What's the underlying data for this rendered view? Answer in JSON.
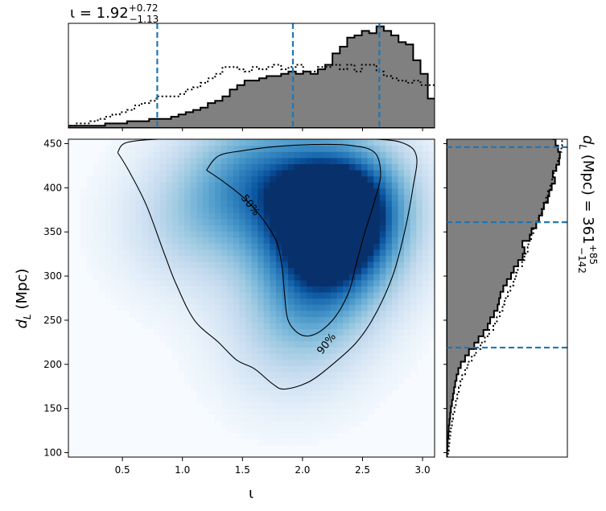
{
  "chart_data": [
    {
      "panel": "joint",
      "type": "heatmap",
      "x_label": "ι",
      "y_label_main": "d",
      "y_label_sub": "L",
      "y_label_unit": "(Mpc)",
      "xlim": [
        0.05,
        3.1
      ],
      "ylim": [
        95,
        455
      ],
      "x_ticks": [
        "0.5",
        "1.0",
        "1.5",
        "2.0",
        "2.5",
        "3.0"
      ],
      "x_tick_values": [
        0.5,
        1.0,
        1.5,
        2.0,
        2.5,
        3.0
      ],
      "y_ticks": [
        "100",
        "150",
        "200",
        "250",
        "300",
        "350",
        "400",
        "450"
      ],
      "y_tick_values": [
        100,
        150,
        200,
        250,
        300,
        350,
        400,
        450
      ],
      "colormap": "Blues",
      "contours": [
        {
          "label": "50%",
          "points": [
            [
              1.2,
              420
            ],
            [
              1.3,
              436
            ],
            [
              1.5,
              442
            ],
            [
              1.8,
              447
            ],
            [
              2.1,
              449
            ],
            [
              2.4,
              448
            ],
            [
              2.6,
              440
            ],
            [
              2.65,
              415
            ],
            [
              2.6,
              385
            ],
            [
              2.52,
              350
            ],
            [
              2.45,
              315
            ],
            [
              2.38,
              280
            ],
            [
              2.25,
              250
            ],
            [
              2.1,
              234
            ],
            [
              1.98,
              234
            ],
            [
              1.88,
              250
            ],
            [
              1.85,
              280
            ],
            [
              1.83,
              310
            ],
            [
              1.78,
              340
            ],
            [
              1.65,
              368
            ],
            [
              1.5,
              390
            ],
            [
              1.33,
              408
            ],
            [
              1.2,
              420
            ]
          ]
        },
        {
          "label": "90%",
          "points": [
            [
              0.46,
              440
            ],
            [
              0.53,
              451
            ],
            [
              0.8,
              455
            ],
            [
              1.2,
              455
            ],
            [
              2.0,
              455
            ],
            [
              2.6,
              455
            ],
            [
              2.85,
              450
            ],
            [
              2.95,
              435
            ],
            [
              2.92,
              400
            ],
            [
              2.85,
              350
            ],
            [
              2.75,
              300
            ],
            [
              2.6,
              255
            ],
            [
              2.45,
              225
            ],
            [
              2.25,
              200
            ],
            [
              2.05,
              180
            ],
            [
              1.85,
              172
            ],
            [
              1.75,
              178
            ],
            [
              1.6,
              195
            ],
            [
              1.45,
              205
            ],
            [
              1.3,
              225
            ],
            [
              1.1,
              250
            ],
            [
              0.95,
              290
            ],
            [
              0.85,
              325
            ],
            [
              0.7,
              380
            ],
            [
              0.55,
              420
            ],
            [
              0.46,
              440
            ]
          ]
        }
      ],
      "density_peaks": [
        {
          "x": 2.33,
          "y": 385,
          "weight": 1.0
        },
        {
          "x": 2.25,
          "y": 330,
          "weight": 0.55
        },
        {
          "x": 1.6,
          "y": 425,
          "weight": 0.45
        },
        {
          "x": 2.05,
          "y": 270,
          "weight": 0.35
        },
        {
          "x": 1.0,
          "y": 355,
          "weight": 0.22
        },
        {
          "x": 1.85,
          "y": 215,
          "weight": 0.18
        },
        {
          "x": 1.3,
          "y": 380,
          "weight": 0.2
        }
      ]
    },
    {
      "panel": "iota-marginal",
      "type": "histogram",
      "title_prefix": "ι = 1.92",
      "title_sup": "+0.72",
      "title_sub": "−1.13",
      "bin_edges_start": 0.05,
      "bin_width": 0.0611,
      "filled_values": [
        1,
        1,
        1,
        1,
        1,
        2,
        2,
        2,
        3,
        3,
        3,
        4,
        4,
        4,
        5,
        6,
        7,
        8,
        9,
        11,
        12,
        14,
        17,
        19,
        21,
        21,
        22,
        23,
        23,
        24,
        25,
        24,
        25,
        24,
        26,
        28,
        33,
        36,
        40,
        41,
        43,
        42,
        45,
        43,
        41,
        38,
        37,
        30,
        24,
        13,
        9,
        6,
        5,
        4,
        2,
        1,
        1,
        1,
        0,
        0
      ],
      "dotted_values": [
        1,
        2,
        2,
        3,
        4,
        5,
        6,
        7,
        8,
        10,
        11,
        12,
        14,
        14,
        14,
        15,
        17,
        18,
        20,
        22,
        24,
        27,
        27,
        26,
        25,
        27,
        26,
        27,
        28,
        26,
        27,
        28,
        25,
        25,
        27,
        27,
        28,
        26,
        28,
        25,
        28,
        28,
        25,
        23,
        22,
        21,
        20,
        21,
        19,
        19,
        18,
        17,
        12,
        10,
        9,
        6,
        4,
        2,
        1,
        0
      ],
      "quantile_lines": [
        0.79,
        1.92,
        2.64
      ]
    },
    {
      "panel": "distance-marginal",
      "type": "histogram",
      "orientation": "horizontal",
      "label_main": "d",
      "label_sub": "L",
      "label_rest": "(Mpc) = 361",
      "label_sup": "+85",
      "label_low": "−142",
      "bin_edges_start": 95,
      "bin_width": 7.2,
      "filled_values": [
        0.1,
        0.2,
        0.3,
        0.5,
        0.6,
        0.8,
        1.0,
        1.2,
        1.5,
        1.8,
        2.1,
        2.4,
        2.8,
        3.3,
        4.0,
        5.2,
        6.3,
        7.8,
        9.0,
        10.4,
        11.6,
        12.3,
        13.4,
        14.4,
        14.8,
        15.2,
        16.0,
        17.0,
        18.2,
        19.0,
        20.2,
        21.5,
        22.0,
        21.4,
        23.5,
        24.0,
        25.3,
        26.1,
        27.0,
        27.5,
        28.6,
        29.0,
        29.7,
        30.6,
        30.0,
        31.0,
        31.8,
        32.0,
        31.5,
        30.8,
        30.1
      ],
      "dotted_values": [
        0.4,
        0.6,
        0.8,
        1.0,
        1.2,
        1.5,
        1.8,
        2.2,
        2.6,
        3.0,
        3.4,
        3.9,
        4.4,
        5.2,
        6.0,
        7.1,
        8.3,
        9.6,
        10.8,
        12.0,
        13.2,
        14.2,
        15.0,
        15.8,
        16.4,
        17.3,
        18.0,
        18.9,
        19.6,
        20.1,
        21.3,
        22.0,
        22.9,
        23.1,
        23.9,
        24.5,
        25.3,
        26.0,
        26.8,
        27.4,
        28.1,
        28.6,
        29.3,
        29.8,
        30.3,
        30.9,
        31.4,
        32.0,
        32.4,
        32.6,
        32.8
      ],
      "quantile_lines": [
        219,
        361,
        446
      ]
    }
  ],
  "colors": {
    "hist_fill": "#808080",
    "quantile_line": "#1f77b4",
    "cmap_low": "#f7fbff",
    "cmap_high": "#08306b"
  }
}
